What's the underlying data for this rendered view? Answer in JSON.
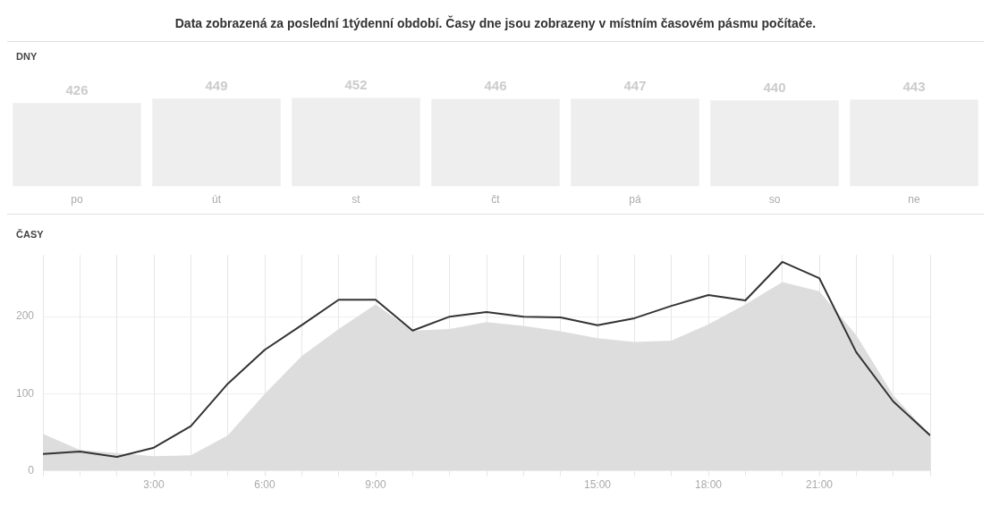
{
  "chart_data": [
    {
      "type": "bar",
      "title": "Data zobrazená za poslední 1týdenní období. Časy dne jsou zobrazeny v místním časovém pásmu počítače.",
      "subtitle": "DNY",
      "categories": [
        "po",
        "út",
        "st",
        "čt",
        "pá",
        "so",
        "ne"
      ],
      "values": [
        426,
        449,
        452,
        446,
        447,
        440,
        443
      ],
      "color": "#eeeeee",
      "data_labels": true,
      "tick_labels": "x",
      "grid": false,
      "legend": false
    },
    {
      "type": "line",
      "title": "ČASY",
      "x": [
        0,
        1,
        2,
        3,
        4,
        5,
        6,
        7,
        8,
        9,
        10,
        11,
        12,
        13,
        14,
        15,
        16,
        17,
        18,
        19,
        20,
        21,
        22,
        23,
        24
      ],
      "series": [
        {
          "type": "area",
          "color": "#dddddd",
          "values": [
            48,
            27,
            23,
            19,
            20,
            46,
            100,
            149,
            184,
            216,
            182,
            184,
            193,
            188,
            181,
            172,
            167,
            169,
            190,
            216,
            245,
            233,
            176,
            98,
            46
          ]
        },
        {
          "type": "line",
          "color": "#333333",
          "values": [
            22,
            25,
            18,
            30,
            58,
            113,
            157,
            189,
            222,
            222,
            182,
            200,
            206,
            200,
            199,
            189,
            198,
            214,
            228,
            221,
            271,
            250,
            154,
            90,
            46
          ]
        }
      ],
      "xlim": [
        0,
        24
      ],
      "xticks": [
        {
          "value": 0,
          "label": null
        },
        {
          "value": 1,
          "label": null
        },
        {
          "value": 2,
          "label": null
        },
        {
          "value": 3,
          "label": "3:00"
        },
        {
          "value": 4,
          "label": null
        },
        {
          "value": 5,
          "label": null
        },
        {
          "value": 6,
          "label": "6:00"
        },
        {
          "value": 7,
          "label": null
        },
        {
          "value": 8,
          "label": null
        },
        {
          "value": 9,
          "label": "9:00"
        },
        {
          "value": 10,
          "label": null
        },
        {
          "value": 11,
          "label": null
        },
        {
          "value": 12,
          "label": null
        },
        {
          "value": 13,
          "label": null
        },
        {
          "value": 14,
          "label": null
        },
        {
          "value": 15,
          "label": "15:00"
        },
        {
          "value": 16,
          "label": null
        },
        {
          "value": 17,
          "label": null
        },
        {
          "value": 18,
          "label": "18:00"
        },
        {
          "value": 19,
          "label": null
        },
        {
          "value": 20,
          "label": null
        },
        {
          "value": 21,
          "label": "21:00"
        },
        {
          "value": 22,
          "label": null
        },
        {
          "value": 23,
          "label": null
        },
        {
          "value": 24,
          "label": null
        }
      ],
      "ylim": [
        0,
        280
      ],
      "yticks": [
        0,
        100,
        200
      ],
      "grid": true,
      "legend": false,
      "marker": "none",
      "line_style": "solid"
    }
  ]
}
